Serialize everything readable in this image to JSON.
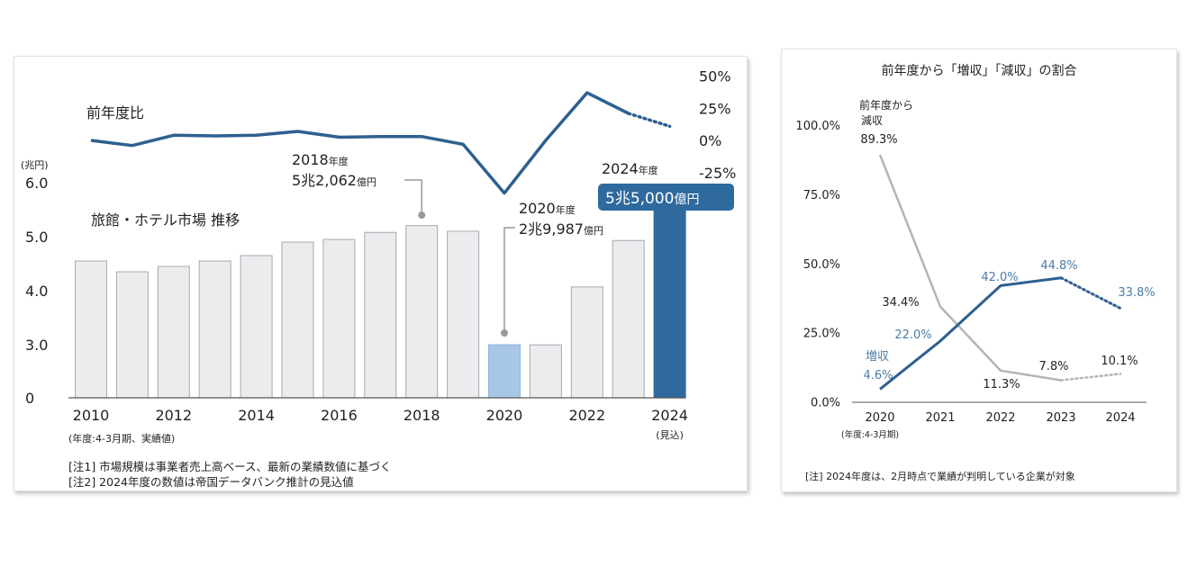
{
  "left_chart": {
    "title": "旅館・ホテル市場 推移",
    "growth_label": "前年度比",
    "unit_label": "(兆円)",
    "fiscal_note": "(年度:4-3月期、実績値)",
    "estimate_label": "(見込)",
    "notes": [
      "[注1] 市場規模は事業者売上高ベース、最新の業績数値に基づく",
      "[注2] 2024年度の数値は帝国データバンク推計の見込値"
    ],
    "callouts": {
      "c2018": {
        "year": "2018",
        "year_unit": "年度",
        "value_main": "5兆2,062",
        "value_unit": "億円"
      },
      "c2020": {
        "year": "2020",
        "year_unit": "年度",
        "value_main": "2兆9,987",
        "value_unit": "億円"
      },
      "c2024": {
        "year": "2024",
        "year_unit": "年度",
        "value_main": "5兆5,000",
        "value_unit": "億円"
      }
    },
    "colors": {
      "bar": "#eaecee",
      "bar_stroke": "#a7abb0",
      "bar_2020": "#a8c7e6",
      "bar_2024": "#2e6a9e",
      "line": "#2e6090"
    }
  },
  "right_chart": {
    "title": "前年度から「増収」「減収」の割合",
    "fiscal_note": "(年度:4-3月期)",
    "note": "[注] 2024年度は、2月時点で業績が判明している企業が対象",
    "colors": {
      "increase": "#2e6090",
      "decrease": "#b4b4b4",
      "increase_label": "#4a7ba8"
    }
  },
  "chart_data": [
    {
      "type": "bar",
      "title": "旅館・ホテル市場 推移",
      "ylabel": "(兆円)",
      "categories": [
        "2010",
        "2011",
        "2012",
        "2013",
        "2014",
        "2015",
        "2016",
        "2017",
        "2018",
        "2019",
        "2020",
        "2021",
        "2022",
        "2023",
        "2024"
      ],
      "values": [
        4.55,
        4.35,
        4.45,
        4.55,
        4.65,
        4.9,
        4.95,
        5.08,
        5.2062,
        5.1,
        2.9987,
        2.99,
        4.07,
        4.93,
        5.5
      ],
      "y_ticks": [
        "0",
        "3.0",
        "4.0",
        "5.0",
        "6.0"
      ],
      "x_tick_labels": [
        "2010",
        "2012",
        "2014",
        "2016",
        "2018",
        "2020",
        "2022",
        "2024"
      ]
    },
    {
      "type": "line",
      "title": "前年度比",
      "unit": "%",
      "x": [
        "2010",
        "2011",
        "2012",
        "2013",
        "2014",
        "2015",
        "2016",
        "2017",
        "2018",
        "2019",
        "2020",
        "2021",
        "2022",
        "2023",
        "2024"
      ],
      "values": [
        0,
        -4,
        4,
        3.5,
        4,
        7,
        2.5,
        3,
        3,
        -3,
        -41,
        0,
        37,
        21,
        11
      ],
      "dotted_from": "2023",
      "y_ticks": [
        "50%",
        "25%",
        "0%",
        "-25%"
      ],
      "ylim": [
        -25,
        50
      ]
    },
    {
      "type": "line",
      "title": "前年度から「増収」「減収」の割合",
      "x": [
        "2020",
        "2021",
        "2022",
        "2023",
        "2024"
      ],
      "y_ticks": [
        "0.0%",
        "25.0%",
        "50.0%",
        "75.0%",
        "100.0%"
      ],
      "ylim": [
        0,
        100
      ],
      "series": [
        {
          "name": "増収",
          "values": [
            4.6,
            22.0,
            42.0,
            44.8,
            33.8
          ],
          "labels": [
            "4.6%",
            "22.0%",
            "42.0%",
            "44.8%",
            "33.8%"
          ]
        },
        {
          "name": "前年度から減収",
          "name_lines": [
            "前年度から",
            "減収"
          ],
          "values": [
            89.3,
            34.4,
            11.3,
            7.8,
            10.1
          ],
          "labels": [
            "89.3%",
            "34.4%",
            "11.3%",
            "7.8%",
            "10.1%"
          ]
        }
      ],
      "dotted_from": "2023"
    }
  ]
}
